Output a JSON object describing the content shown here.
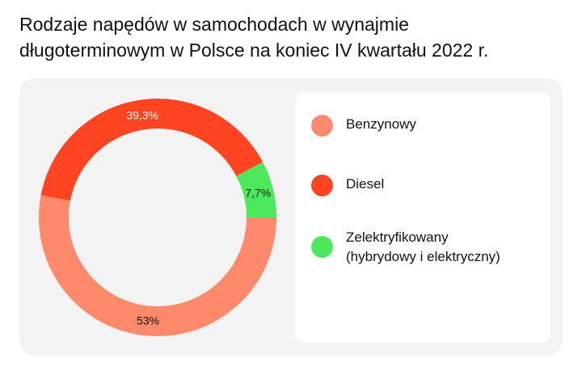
{
  "title_line1": "Rodzaje napędów w samochodach w wynajmie",
  "title_line2": "długoterminowym w Polsce na koniec IV kwartału 2022 r.",
  "colors": {
    "panel_bg": "#f3f3f3",
    "benzynowy": "#ff8a6b",
    "diesel": "#ff4421",
    "zelektryfikowany": "#4de85c"
  },
  "chart_data": {
    "type": "pie",
    "donut": true,
    "title": "Rodzaje napędów w samochodach w wynajmie długoterminowym w Polsce na koniec IV kwartału 2022 r.",
    "series": [
      {
        "name": "Benzynowy",
        "value": 53.0,
        "label": "53%",
        "color": "#ff8a6b"
      },
      {
        "name": "Diesel",
        "value": 39.3,
        "label": "39,3%",
        "color": "#ff4421"
      },
      {
        "name": "Zelektryfikowany",
        "name_sub": "(hybrydowy i elektryczny)",
        "value": 7.7,
        "label": "7,7%",
        "color": "#4de85c"
      }
    ],
    "legend_position": "right"
  }
}
